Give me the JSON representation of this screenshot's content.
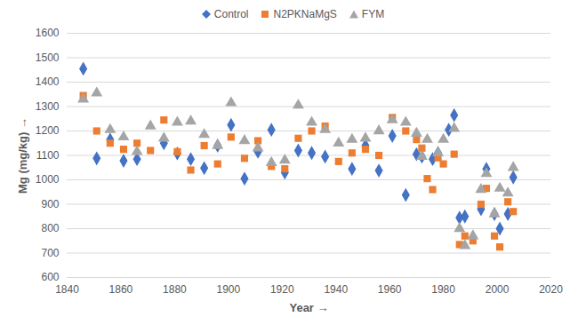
{
  "chart_data": {
    "type": "scatter",
    "x_label": "Year",
    "y_label": "Mg (mg/kg)",
    "xlim": [
      1840,
      2020
    ],
    "xticks": [
      1840,
      1860,
      1880,
      1900,
      1920,
      1940,
      1960,
      1980,
      2000,
      2020
    ],
    "ylim": [
      600,
      1600
    ],
    "yticks": [
      600,
      700,
      800,
      900,
      1000,
      1100,
      1200,
      1300,
      1400,
      1500,
      1600
    ],
    "grid": true,
    "legend": "top",
    "series": [
      {
        "name": "Control",
        "color": "#4472c4",
        "marker": "diamond",
        "x": [
          1846,
          1851,
          1856,
          1861,
          1866,
          1876,
          1881,
          1886,
          1891,
          1896,
          1901,
          1906,
          1911,
          1916,
          1921,
          1926,
          1931,
          1936,
          1946,
          1951,
          1956,
          1961,
          1966,
          1970,
          1972,
          1976,
          1978,
          1982,
          1984,
          1986,
          1988,
          1991,
          1994,
          1996,
          1999,
          2001,
          2004,
          2006
        ],
        "values": [
          1455,
          1088,
          1165,
          1078,
          1085,
          1150,
          1108,
          1085,
          1048,
          1140,
          1225,
          1005,
          1115,
          1205,
          1030,
          1120,
          1110,
          1095,
          1045,
          1140,
          1038,
          1180,
          938,
          1105,
          1095,
          1085,
          1110,
          1205,
          1265,
          845,
          850,
          765,
          880,
          1045,
          860,
          800,
          860,
          1010
        ]
      },
      {
        "name": "N2PKNaMgS",
        "color": "#ed7d31",
        "marker": "square",
        "x": [
          1846,
          1851,
          1856,
          1861,
          1866,
          1871,
          1876,
          1881,
          1886,
          1891,
          1896,
          1901,
          1906,
          1911,
          1916,
          1921,
          1926,
          1931,
          1936,
          1941,
          1946,
          1951,
          1956,
          1961,
          1966,
          1970,
          1972,
          1974,
          1976,
          1978,
          1980,
          1984,
          1986,
          1988,
          1991,
          1994,
          1996,
          1999,
          2001,
          2004,
          2006
        ],
        "values": [
          1345,
          1200,
          1150,
          1125,
          1150,
          1120,
          1245,
          1115,
          1040,
          1140,
          1065,
          1175,
          1088,
          1160,
          1055,
          1045,
          1170,
          1200,
          1220,
          1075,
          1110,
          1125,
          1100,
          1255,
          1200,
          1165,
          1130,
          1005,
          960,
          1090,
          1065,
          1105,
          735,
          770,
          750,
          900,
          965,
          770,
          725,
          910,
          870
        ]
      },
      {
        "name": "FYM",
        "color": "#a5a5a5",
        "marker": "triangle",
        "x": [
          1846,
          1851,
          1856,
          1861,
          1866,
          1871,
          1876,
          1881,
          1886,
          1891,
          1896,
          1901,
          1906,
          1911,
          1916,
          1921,
          1926,
          1931,
          1936,
          1941,
          1946,
          1951,
          1956,
          1961,
          1966,
          1970,
          1972,
          1974,
          1978,
          1980,
          1984,
          1986,
          1988,
          1991,
          1994,
          1996,
          1999,
          2001,
          2004,
          2006
        ],
        "values": [
          1330,
          1355,
          1205,
          1175,
          1115,
          1220,
          1170,
          1235,
          1240,
          1185,
          1140,
          1315,
          1160,
          1130,
          1070,
          1080,
          1305,
          1235,
          1205,
          1150,
          1165,
          1170,
          1200,
          1245,
          1235,
          1190,
          1095,
          1165,
          1110,
          1165,
          1210,
          800,
          730,
          770,
          960,
          1025,
          860,
          965,
          945,
          1050
        ]
      }
    ]
  }
}
